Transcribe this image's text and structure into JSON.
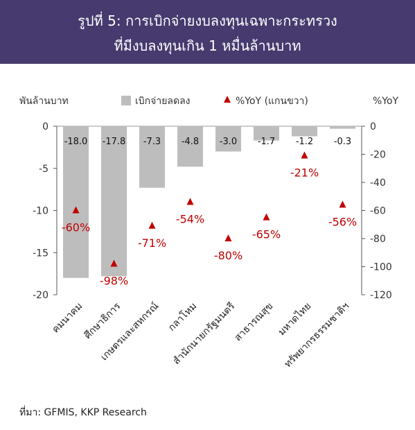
{
  "header": {
    "title_line1": "รูปที่ 5: การเบิกจ่ายงบลงทุนเฉพาะกระทรวง",
    "title_line2": "ที่มีงบลงทุนเกิน 1 หมื่นล้านบาท"
  },
  "source": "ที่มา: GFMIS, KKP Research",
  "chart_data": {
    "type": "bar",
    "categories": [
      "คมนาคม",
      "ศึกษาธิการ",
      "เกษตรและสหกรณ์",
      "กลาโหม",
      "สำนักนายกรัฐมนตรี",
      "สาธารณสุข",
      "มหาดไทย",
      "ทรัพยากรธรรมชาติฯ"
    ],
    "series": [
      {
        "name": "เบิกจ่ายลดลง",
        "axis": "left",
        "color": "#bdbdbd",
        "values": [
          -18.0,
          -17.8,
          -7.3,
          -4.8,
          -3.0,
          -1.7,
          -1.2,
          -0.3
        ],
        "labels": [
          "-18.0",
          "-17.8",
          "-7.3",
          "-4.8",
          "-3.0",
          "-1.7",
          "-1.2",
          "-0.3"
        ]
      },
      {
        "name": "%YoY (แกนขวา)",
        "axis": "right",
        "color": "#c00000",
        "marker": "triangle",
        "values": [
          -60,
          -98,
          -71,
          -54,
          -80,
          -65,
          -21,
          -56
        ],
        "labels": [
          "-60%",
          "-98%",
          "-71%",
          "-54%",
          "-80%",
          "-65%",
          "-21%",
          "-56%"
        ]
      }
    ],
    "y_left": {
      "label": "พันล้านบาท",
      "ylim": [
        -20,
        0
      ],
      "ticks": [
        0,
        -5,
        -10,
        -15,
        -20
      ]
    },
    "y_right": {
      "label": "%YoY",
      "ylim": [
        -120,
        0
      ],
      "ticks": [
        0,
        -20,
        -40,
        -60,
        -80,
        -100,
        -120
      ]
    },
    "legend_position": "top"
  }
}
